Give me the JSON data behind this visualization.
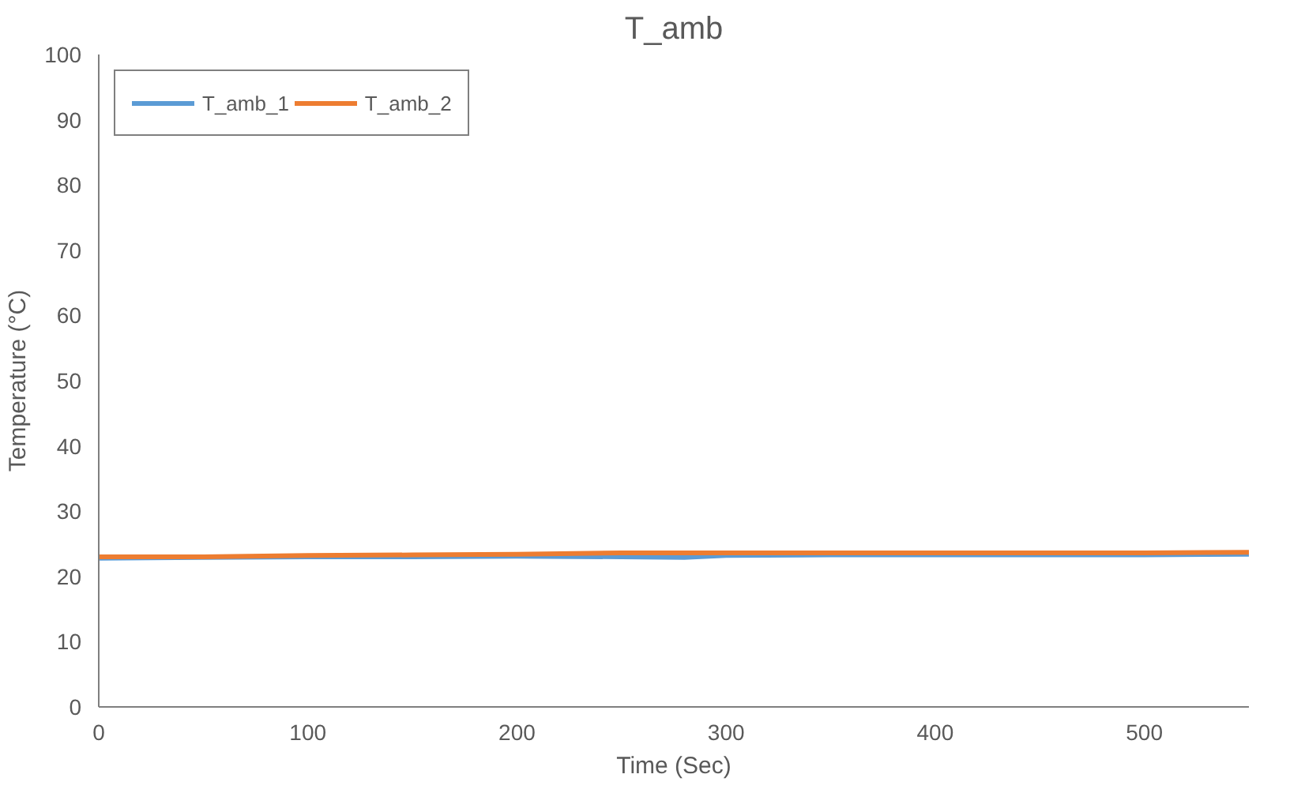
{
  "chart_data": {
    "type": "line",
    "title": "T_amb",
    "xlabel": "Time (Sec)",
    "ylabel": "Temperature (°C)",
    "xlim": [
      0,
      550
    ],
    "xticks": [
      0,
      100,
      200,
      300,
      400,
      500
    ],
    "ylim": [
      0,
      100
    ],
    "yticks": [
      0,
      10,
      20,
      30,
      40,
      50,
      60,
      70,
      80,
      90,
      100
    ],
    "grid": false,
    "legend": "top left",
    "line_style": "solid",
    "marker": "none",
    "series": [
      {
        "name": "T_amb_1",
        "color": "#5b9bd5",
        "x": [
          0,
          50,
          100,
          150,
          200,
          250,
          280,
          300,
          350,
          400,
          450,
          500,
          550
        ],
        "values": [
          22.8,
          22.9,
          23.0,
          23.0,
          23.1,
          23.0,
          22.9,
          23.2,
          23.3,
          23.3,
          23.3,
          23.3,
          23.4
        ]
      },
      {
        "name": "T_amb_2",
        "color": "#ed7d31",
        "x": [
          0,
          50,
          100,
          150,
          200,
          250,
          300,
          350,
          400,
          450,
          500,
          550
        ],
        "values": [
          23.0,
          23.0,
          23.2,
          23.3,
          23.4,
          23.6,
          23.6,
          23.6,
          23.6,
          23.6,
          23.6,
          23.7
        ]
      }
    ]
  }
}
